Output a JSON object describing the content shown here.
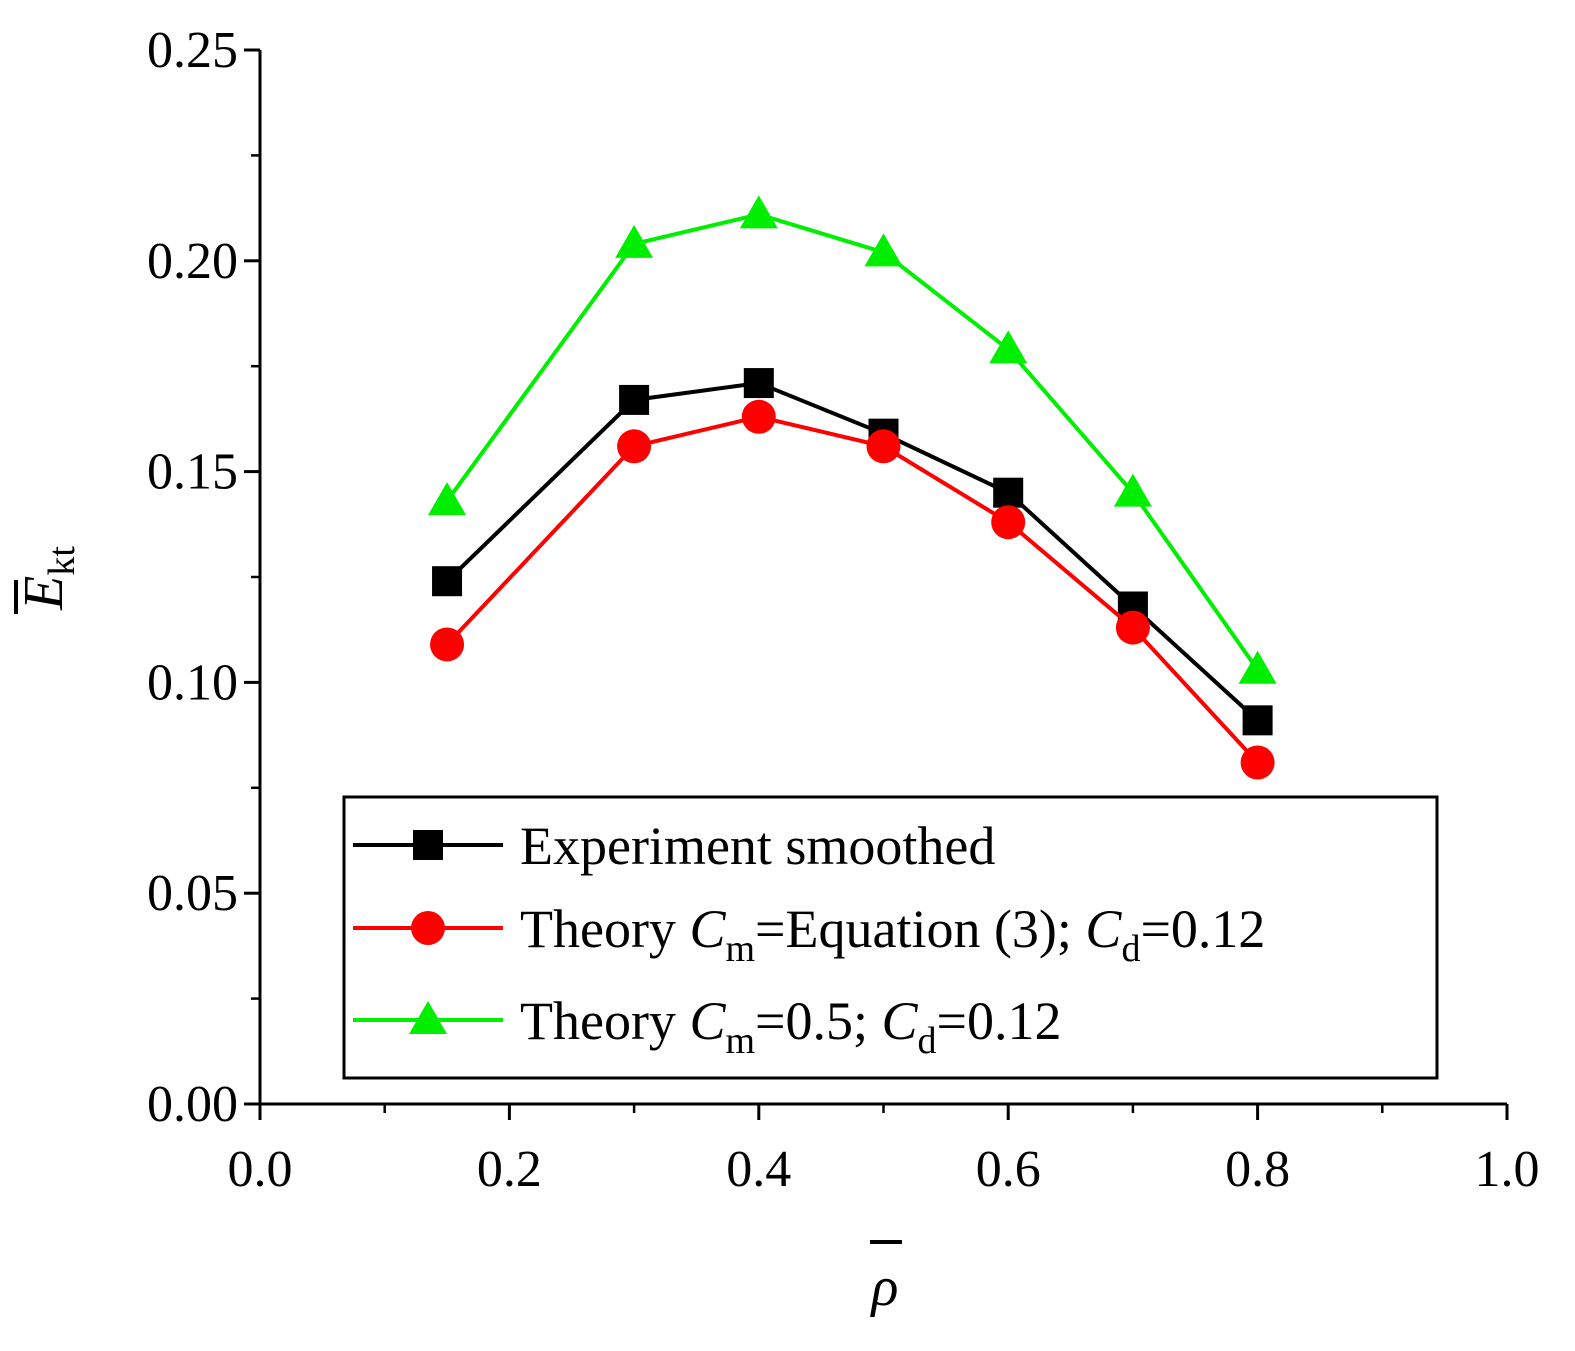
{
  "chart_data": {
    "type": "line",
    "title": "",
    "xlabel": "ρ",
    "ylabel": "E",
    "ylabel_sub": "kt",
    "xlim": [
      0.0,
      1.0
    ],
    "ylim": [
      0.0,
      0.25
    ],
    "x_ticks": [
      "0.0",
      "0.2",
      "0.4",
      "0.6",
      "0.8",
      "1.0"
    ],
    "y_ticks": [
      "0.00",
      "0.05",
      "0.10",
      "0.15",
      "0.20",
      "0.25"
    ],
    "x_tick_values": [
      0.0,
      0.2,
      0.4,
      0.6,
      0.8,
      1.0
    ],
    "y_tick_values": [
      0.0,
      0.05,
      0.1,
      0.15,
      0.2,
      0.25
    ],
    "x_minor_step": 0.1,
    "y_minor_step": 0.025,
    "x": [
      0.15,
      0.3,
      0.4,
      0.5,
      0.6,
      0.7,
      0.8
    ],
    "legend_position": "bottom-center",
    "series": [
      {
        "name": "Experiment smoothed",
        "legend_parts": [
          {
            "text": "Experiment smoothed"
          }
        ],
        "color": "#000000",
        "marker": "square",
        "values": [
          0.124,
          0.167,
          0.171,
          0.159,
          0.145,
          0.118,
          0.091
        ]
      },
      {
        "name": "Theory Cm=Equation (3); Cd=0.12",
        "legend_parts": [
          {
            "text": "Theory "
          },
          {
            "text": "C",
            "italic": true
          },
          {
            "text": "m",
            "sub": true
          },
          {
            "text": "=Equation (3); "
          },
          {
            "text": "C",
            "italic": true
          },
          {
            "text": "d",
            "sub": true
          },
          {
            "text": "=0.12"
          }
        ],
        "color": "#ff0000",
        "marker": "circle",
        "values": [
          0.109,
          0.156,
          0.163,
          0.156,
          0.138,
          0.113,
          0.081
        ]
      },
      {
        "name": "Theory Cm=0.5; Cd=0.12",
        "legend_parts": [
          {
            "text": "Theory "
          },
          {
            "text": "C",
            "italic": true
          },
          {
            "text": "m",
            "sub": true
          },
          {
            "text": "=0.5; "
          },
          {
            "text": "C",
            "italic": true
          },
          {
            "text": "d",
            "sub": true
          },
          {
            "text": "=0.12"
          }
        ],
        "color": "#00ee00",
        "marker": "triangle",
        "values": [
          0.143,
          0.204,
          0.211,
          0.202,
          0.179,
          0.145,
          0.103
        ]
      }
    ]
  }
}
